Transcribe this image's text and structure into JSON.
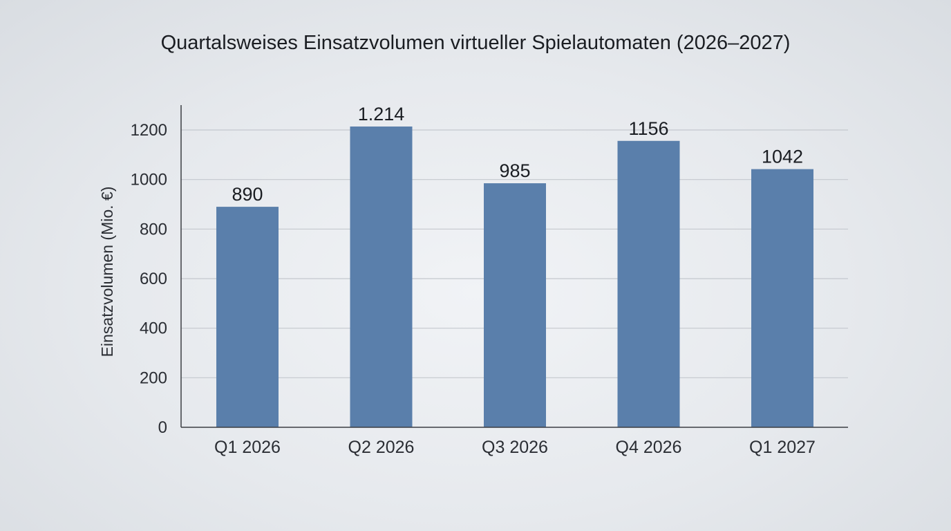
{
  "chart_data": {
    "type": "bar",
    "title": "Quartalsweises Einsatzvolumen virtueller Spielautomaten (2026–2027)",
    "xlabel": "",
    "ylabel": "Einsatzvolumen (Mio. €)",
    "categories": [
      "Q1 2026",
      "Q2 2026",
      "Q3 2026",
      "Q4 2026",
      "Q1 2027"
    ],
    "values": [
      890,
      1214,
      985,
      1156,
      1042
    ],
    "data_labels": [
      "890",
      "1.214",
      "985",
      "1156",
      "1042"
    ],
    "ylim": [
      0,
      1300
    ],
    "yticks": [
      0,
      200,
      400,
      600,
      800,
      1000,
      1200
    ],
    "grid": true,
    "legend": "none",
    "colors": {
      "bar": "#5a7fab",
      "grid": "#c4c8ce",
      "axis": "#3a3d42"
    }
  }
}
